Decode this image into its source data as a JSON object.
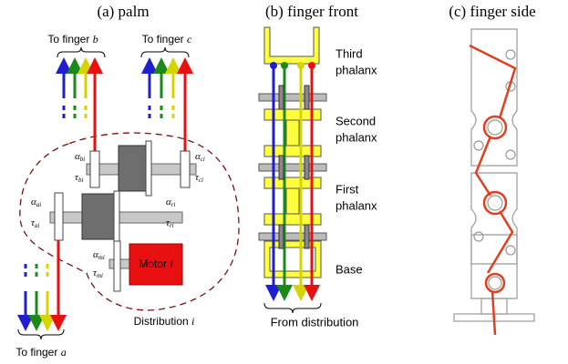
{
  "panels": [
    {
      "title": "(a) palm",
      "targets": [
        {
          "text": "To finger",
          "var": "b"
        },
        {
          "text": "To finger",
          "var": "c"
        },
        {
          "text": "To finger",
          "var": "a"
        }
      ],
      "symbols": [
        {
          "sym": "α",
          "sub": "bi"
        },
        {
          "sym": "τ",
          "sub": "bi"
        },
        {
          "sym": "α",
          "sub": "ci"
        },
        {
          "sym": "τ",
          "sub": "ci"
        },
        {
          "sym": "α",
          "sub": "ai"
        },
        {
          "sym": "τ",
          "sub": "ai"
        },
        {
          "sym": "α",
          "sub": "ri"
        },
        {
          "sym": "τ",
          "sub": "ri"
        },
        {
          "sym": "α",
          "sub": "mi"
        },
        {
          "sym": "τ",
          "sub": "mi"
        }
      ],
      "motor": {
        "text": "Motor",
        "var": "i"
      },
      "distribution": {
        "text": "Distribution",
        "var": "i"
      }
    },
    {
      "title": "(b) finger front",
      "labels": [
        [
          "Third",
          "phalanx"
        ],
        [
          "Second",
          "phalanx"
        ],
        [
          "First",
          "phalanx"
        ],
        [
          "Base"
        ]
      ],
      "source": "From distribution"
    },
    {
      "title": "(c) finger side"
    }
  ]
}
